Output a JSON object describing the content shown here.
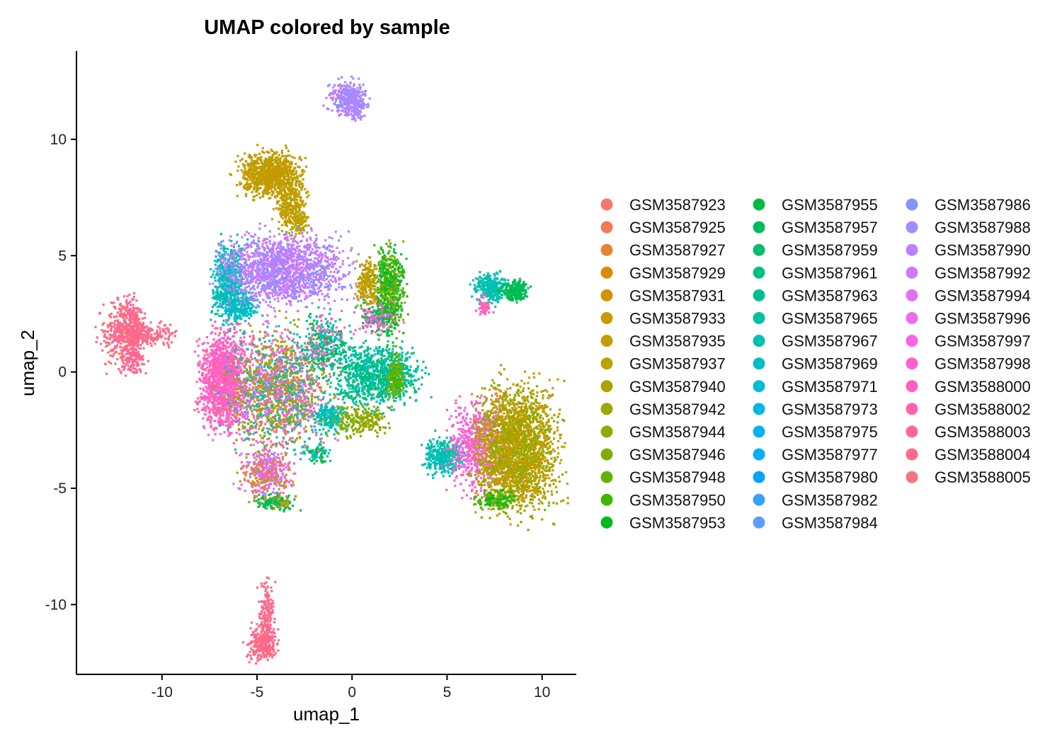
{
  "chart_data": {
    "type": "scatter",
    "title": "UMAP colored by sample",
    "xlabel": "umap_1",
    "ylabel": "umap_2",
    "xlim": [
      -14.5,
      11.8
    ],
    "ylim": [
      -13.0,
      13.8
    ],
    "x_ticks": [
      -10,
      -5,
      0,
      5,
      10
    ],
    "y_ticks": [
      -10,
      -5,
      0,
      5,
      10
    ],
    "grid": false,
    "legend_placement": "right",
    "legend_columns": 3,
    "series": [
      {
        "name": "GSM3587923",
        "color": "#F8766D"
      },
      {
        "name": "GSM3587925",
        "color": "#F07B51"
      },
      {
        "name": "GSM3587927",
        "color": "#E68432"
      },
      {
        "name": "GSM3587929",
        "color": "#DC8B00"
      },
      {
        "name": "GSM3587931",
        "color": "#D29200"
      },
      {
        "name": "GSM3587933",
        "color": "#C89900"
      },
      {
        "name": "GSM3587935",
        "color": "#C2A000"
      },
      {
        "name": "GSM3587937",
        "color": "#B8A300"
      },
      {
        "name": "GSM3587940",
        "color": "#ABA300"
      },
      {
        "name": "GSM3587942",
        "color": "#9DA700"
      },
      {
        "name": "GSM3587944",
        "color": "#8EAB00"
      },
      {
        "name": "GSM3587946",
        "color": "#7CAE00"
      },
      {
        "name": "GSM3587948",
        "color": "#64B200"
      },
      {
        "name": "GSM3587950",
        "color": "#3FB600"
      },
      {
        "name": "GSM3587953",
        "color": "#00B81F"
      },
      {
        "name": "GSM3587955",
        "color": "#00BA42"
      },
      {
        "name": "GSM3587957",
        "color": "#00BC59"
      },
      {
        "name": "GSM3587959",
        "color": "#00BE6D"
      },
      {
        "name": "GSM3587961",
        "color": "#00BF7F"
      },
      {
        "name": "GSM3587963",
        "color": "#00C091"
      },
      {
        "name": "GSM3587965",
        "color": "#00C1A2"
      },
      {
        "name": "GSM3587967",
        "color": "#00C0B2"
      },
      {
        "name": "GSM3587969",
        "color": "#00BFC4"
      },
      {
        "name": "GSM3587971",
        "color": "#00BCD4"
      },
      {
        "name": "GSM3587973",
        "color": "#00B8E3"
      },
      {
        "name": "GSM3587975",
        "color": "#00B4EF"
      },
      {
        "name": "GSM3587977",
        "color": "#00AEF9"
      },
      {
        "name": "GSM3587980",
        "color": "#00A5FF"
      },
      {
        "name": "GSM3587982",
        "color": "#35A2FF"
      },
      {
        "name": "GSM3587984",
        "color": "#619CFF"
      },
      {
        "name": "GSM3587986",
        "color": "#8494FF"
      },
      {
        "name": "GSM3587988",
        "color": "#A58AFF"
      },
      {
        "name": "GSM3587990",
        "color": "#BB80FF"
      },
      {
        "name": "GSM3587992",
        "color": "#CF78FF"
      },
      {
        "name": "GSM3587994",
        "color": "#E16FF8"
      },
      {
        "name": "GSM3587996",
        "color": "#EE6AEE"
      },
      {
        "name": "GSM3587997",
        "color": "#F963E4"
      },
      {
        "name": "GSM3587998",
        "color": "#FF61D0"
      },
      {
        "name": "GSM3588000",
        "color": "#FF5FC0"
      },
      {
        "name": "GSM3588002",
        "color": "#FF62AF"
      },
      {
        "name": "GSM3588003",
        "color": "#FF659A"
      },
      {
        "name": "GSM3588004",
        "color": "#FD6A86"
      },
      {
        "name": "GSM3588005",
        "color": "#F8737D"
      }
    ],
    "clusters": [
      {
        "cx": -12.0,
        "cy": 1.6,
        "rx": 0.9,
        "ry": 1.1,
        "n": 380,
        "c": [
          40,
          41,
          42,
          0
        ]
      },
      {
        "cx": -11.1,
        "cy": 1.6,
        "rx": 1.3,
        "ry": 0.35,
        "n": 260,
        "c": [
          40,
          41,
          42
        ]
      },
      {
        "cx": -11.6,
        "cy": 2.3,
        "rx": 0.45,
        "ry": 0.7,
        "n": 120,
        "c": [
          40,
          41
        ]
      },
      {
        "cx": -11.6,
        "cy": 0.6,
        "rx": 0.4,
        "ry": 0.55,
        "n": 100,
        "c": [
          40,
          41
        ]
      },
      {
        "cx": -4.7,
        "cy": -11.7,
        "rx": 0.6,
        "ry": 0.55,
        "n": 250,
        "c": [
          40,
          41,
          42
        ]
      },
      {
        "cx": -4.5,
        "cy": -10.5,
        "rx": 0.3,
        "ry": 1.2,
        "n": 200,
        "c": [
          40,
          41,
          42
        ]
      },
      {
        "cx": -0.2,
        "cy": 11.8,
        "rx": 0.75,
        "ry": 0.55,
        "n": 320,
        "c": [
          31,
          32,
          30,
          33
        ]
      },
      {
        "cx": 0.2,
        "cy": 11.3,
        "rx": 0.35,
        "ry": 0.4,
        "n": 90,
        "c": [
          31,
          32
        ]
      },
      {
        "cx": -4.3,
        "cy": 8.5,
        "rx": 1.2,
        "ry": 0.7,
        "n": 900,
        "c": [
          5,
          6,
          7,
          4,
          8
        ]
      },
      {
        "cx": -3.2,
        "cy": 7.1,
        "rx": 0.6,
        "ry": 0.9,
        "n": 300,
        "c": [
          5,
          6,
          7,
          8
        ]
      },
      {
        "cx": -2.7,
        "cy": 6.4,
        "rx": 0.3,
        "ry": 0.4,
        "n": 60,
        "c": [
          6,
          7
        ]
      },
      {
        "cx": -6.5,
        "cy": 3.8,
        "rx": 0.65,
        "ry": 1.3,
        "n": 600,
        "c": [
          21,
          22,
          23,
          20
        ]
      },
      {
        "cx": -5.7,
        "cy": 2.8,
        "rx": 0.6,
        "ry": 0.5,
        "n": 180,
        "c": [
          21,
          22,
          23
        ]
      },
      {
        "cx": -3.5,
        "cy": 4.4,
        "rx": 2.5,
        "ry": 1.1,
        "n": 1500,
        "c": [
          31,
          32,
          33,
          34,
          30
        ]
      },
      {
        "cx": 2.0,
        "cy": 3.5,
        "rx": 0.6,
        "ry": 1.4,
        "n": 600,
        "c": [
          12,
          13,
          14,
          15,
          10
        ]
      },
      {
        "cx": 0.8,
        "cy": 3.8,
        "rx": 0.45,
        "ry": 0.8,
        "n": 200,
        "c": [
          5,
          6,
          8
        ]
      },
      {
        "cx": 1.4,
        "cy": 2.3,
        "rx": 0.8,
        "ry": 0.5,
        "n": 200,
        "c": [
          15,
          16,
          36,
          37
        ]
      },
      {
        "cx": 7.3,
        "cy": 3.6,
        "rx": 0.65,
        "ry": 0.45,
        "n": 260,
        "c": [
          21,
          22,
          20
        ]
      },
      {
        "cx": 8.6,
        "cy": 3.5,
        "rx": 0.55,
        "ry": 0.35,
        "n": 220,
        "c": [
          15,
          16,
          17
        ]
      },
      {
        "cx": 7.0,
        "cy": 2.8,
        "rx": 0.3,
        "ry": 0.35,
        "n": 50,
        "c": [
          38,
          39
        ]
      },
      {
        "cx": -6.7,
        "cy": -0.4,
        "rx": 1.0,
        "ry": 1.6,
        "n": 1300,
        "c": [
          38,
          39,
          37,
          36,
          40
        ]
      },
      {
        "cx": -3.8,
        "cy": -0.7,
        "rx": 2.0,
        "ry": 2.0,
        "n": 1700,
        "c": [
          38,
          39,
          5,
          8,
          10,
          20,
          22,
          33
        ]
      },
      {
        "cx": -1.4,
        "cy": 1.2,
        "rx": 0.9,
        "ry": 1.0,
        "n": 350,
        "c": [
          20,
          21,
          15,
          38
        ]
      },
      {
        "cx": 1.3,
        "cy": -0.1,
        "rx": 1.6,
        "ry": 1.0,
        "n": 1000,
        "c": [
          19,
          20,
          21,
          22,
          16,
          17
        ]
      },
      {
        "cx": -1.1,
        "cy": -1.9,
        "rx": 0.6,
        "ry": 0.5,
        "n": 200,
        "c": [
          20,
          21,
          22
        ]
      },
      {
        "cx": 2.3,
        "cy": -0.2,
        "rx": 0.35,
        "ry": 0.7,
        "n": 150,
        "c": [
          11,
          12,
          13
        ]
      },
      {
        "cx": 0.4,
        "cy": -2.1,
        "rx": 1.1,
        "ry": 0.5,
        "n": 220,
        "c": [
          8,
          9,
          10,
          11,
          12
        ]
      },
      {
        "cx": -4.5,
        "cy": -4.3,
        "rx": 1.0,
        "ry": 0.8,
        "n": 450,
        "c": [
          38,
          39,
          32,
          33,
          4,
          5
        ]
      },
      {
        "cx": -4.0,
        "cy": -5.6,
        "rx": 0.8,
        "ry": 0.25,
        "n": 160,
        "c": [
          15,
          16,
          17,
          5
        ]
      },
      {
        "cx": -1.8,
        "cy": -3.5,
        "rx": 0.4,
        "ry": 0.3,
        "n": 70,
        "c": [
          20,
          21,
          14
        ]
      },
      {
        "cx": 4.8,
        "cy": -3.6,
        "rx": 0.75,
        "ry": 0.6,
        "n": 360,
        "c": [
          21,
          22,
          20
        ]
      },
      {
        "cx": 6.7,
        "cy": -3.2,
        "rx": 1.2,
        "ry": 1.4,
        "n": 700,
        "c": [
          38,
          39,
          36,
          37,
          33
        ]
      },
      {
        "cx": 8.7,
        "cy": -3.3,
        "rx": 1.6,
        "ry": 2.0,
        "n": 2300,
        "c": [
          6,
          7,
          8,
          9,
          10,
          11,
          4,
          5
        ]
      },
      {
        "cx": 7.6,
        "cy": -5.5,
        "rx": 0.8,
        "ry": 0.3,
        "n": 150,
        "c": [
          12,
          13,
          14
        ]
      }
    ]
  }
}
